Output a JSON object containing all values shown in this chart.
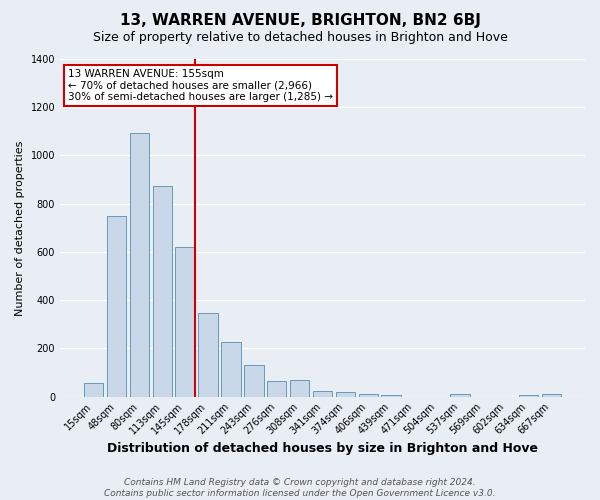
{
  "title": "13, WARREN AVENUE, BRIGHTON, BN2 6BJ",
  "subtitle": "Size of property relative to detached houses in Brighton and Hove",
  "xlabel": "Distribution of detached houses by size in Brighton and Hove",
  "ylabel": "Number of detached properties",
  "footer_lines": [
    "Contains HM Land Registry data © Crown copyright and database right 2024.",
    "Contains public sector information licensed under the Open Government Licence v3.0."
  ],
  "categories": [
    "15sqm",
    "48sqm",
    "80sqm",
    "113sqm",
    "145sqm",
    "178sqm",
    "211sqm",
    "243sqm",
    "276sqm",
    "308sqm",
    "341sqm",
    "374sqm",
    "406sqm",
    "439sqm",
    "471sqm",
    "504sqm",
    "537sqm",
    "569sqm",
    "602sqm",
    "634sqm",
    "667sqm"
  ],
  "values": [
    55,
    750,
    1095,
    875,
    620,
    345,
    225,
    130,
    65,
    70,
    25,
    20,
    10,
    5,
    0,
    0,
    10,
    0,
    0,
    5,
    10
  ],
  "bar_color": "#c8d8e8",
  "bar_edge_color": "#6699bb",
  "vline_x_index": 4,
  "vline_color": "#cc0000",
  "annotation_box_text": "13 WARREN AVENUE: 155sqm\n← 70% of detached houses are smaller (2,966)\n30% of semi-detached houses are larger (1,285) →",
  "annotation_box_edge_color": "#cc0000",
  "annotation_box_facecolor": "#ffffff",
  "ylim": [
    0,
    1400
  ],
  "yticks": [
    0,
    200,
    400,
    600,
    800,
    1000,
    1200,
    1400
  ],
  "background_color": "#e8eef4",
  "plot_bg_color": "#e8eef4",
  "grid_color": "#ffffff",
  "title_fontsize": 11,
  "subtitle_fontsize": 9,
  "xlabel_fontsize": 9,
  "ylabel_fontsize": 8,
  "tick_fontsize": 7,
  "footer_fontsize": 6.5,
  "annotation_fontsize": 7.5
}
